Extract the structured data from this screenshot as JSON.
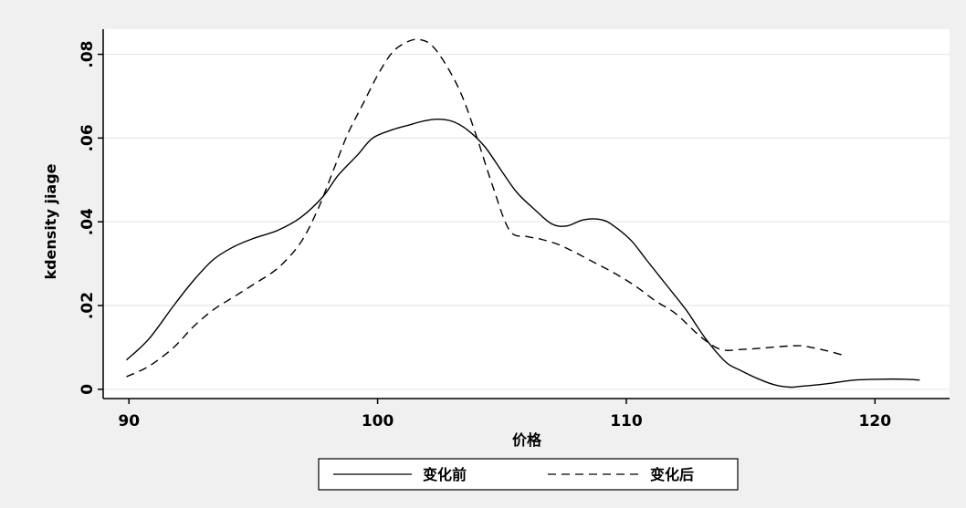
{
  "colors": {
    "outer_background": "#f0f0f0",
    "plot_background": "#ffffff",
    "gridline": "#e8e8e8",
    "line": "#000000"
  },
  "chart_data": {
    "type": "line",
    "title": "",
    "xlabel": "价格",
    "ylabel": "kdensity jiage",
    "xlim": [
      89,
      123
    ],
    "ylim": [
      -0.002,
      0.086
    ],
    "xticks": [
      90,
      100,
      110,
      120
    ],
    "xtick_labels": [
      "90",
      "100",
      "110",
      "120"
    ],
    "yticks": [
      0,
      0.02,
      0.04,
      0.06,
      0.08
    ],
    "ytick_labels": [
      "0",
      ".02",
      ".04",
      ".06",
      ".08"
    ],
    "grid": "horizontal",
    "legend_position": "bottom",
    "series": [
      {
        "name": "变化前",
        "style": "solid",
        "x": [
          89.9,
          90.8,
          91.8,
          92.6,
          93.4,
          94.2,
          95.0,
          96.0,
          96.9,
          97.8,
          98.4,
          99.2,
          99.8,
          100.6,
          101.2,
          101.8,
          102.4,
          103.0,
          103.6,
          104.3,
          105.0,
          105.6,
          106.3,
          107.0,
          107.6,
          108.3,
          109.0,
          109.5,
          110.2,
          110.8,
          111.6,
          112.4,
          113.2,
          114.0,
          114.6,
          115.3,
          116.0,
          116.6,
          117.0,
          117.6,
          118.3,
          119.2,
          120.2,
          121.2,
          121.8
        ],
        "y": [
          0.007,
          0.012,
          0.02,
          0.026,
          0.031,
          0.034,
          0.036,
          0.038,
          0.041,
          0.046,
          0.051,
          0.056,
          0.06,
          0.062,
          0.063,
          0.064,
          0.0645,
          0.064,
          0.062,
          0.058,
          0.052,
          0.047,
          0.043,
          0.0395,
          0.039,
          0.0405,
          0.0405,
          0.039,
          0.0355,
          0.031,
          0.025,
          0.019,
          0.012,
          0.0065,
          0.0045,
          0.0025,
          0.001,
          0.0005,
          0.0007,
          0.001,
          0.0015,
          0.0022,
          0.0024,
          0.0024,
          0.0022
        ]
      },
      {
        "name": "变化后",
        "style": "dashed",
        "x": [
          89.9,
          90.8,
          91.8,
          92.6,
          93.4,
          94.2,
          95.0,
          96.0,
          96.9,
          97.6,
          98.2,
          98.8,
          99.4,
          100.0,
          100.6,
          101.2,
          101.7,
          102.2,
          102.8,
          103.4,
          104.0,
          104.6,
          105.3,
          106.0,
          106.6,
          107.3,
          108.0,
          108.8,
          109.6,
          110.4,
          111.2,
          112.0,
          113.0,
          113.8,
          114.6,
          115.4,
          116.2,
          117.0,
          117.6,
          118.2,
          118.8
        ],
        "y": [
          0.003,
          0.0055,
          0.01,
          0.015,
          0.019,
          0.022,
          0.025,
          0.029,
          0.035,
          0.043,
          0.052,
          0.061,
          0.068,
          0.075,
          0.0805,
          0.083,
          0.0835,
          0.082,
          0.077,
          0.07,
          0.06,
          0.049,
          0.038,
          0.0365,
          0.0358,
          0.0345,
          0.0325,
          0.03,
          0.0275,
          0.0245,
          0.021,
          0.018,
          0.0125,
          0.0095,
          0.0095,
          0.0098,
          0.0102,
          0.0104,
          0.0098,
          0.009,
          0.008
        ]
      }
    ]
  }
}
